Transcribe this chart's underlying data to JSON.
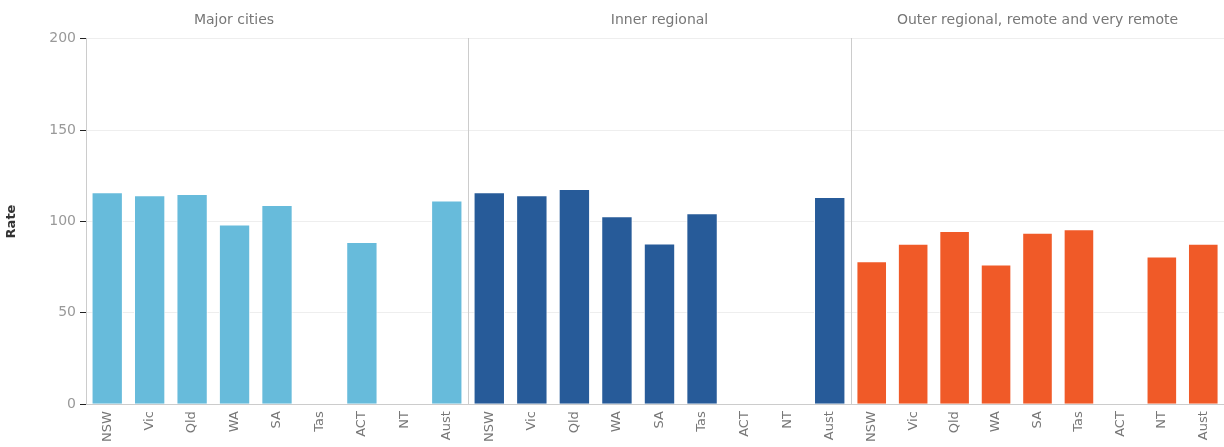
{
  "chart_data": [
    {
      "type": "bar",
      "title": "Major cities",
      "ylabel": "Rate",
      "categories": [
        "NSW",
        "Vic",
        "Qld",
        "WA",
        "SA",
        "Tas",
        "ACT",
        "NT",
        "Aust"
      ],
      "values": [
        116,
        114.3,
        115,
        98.4,
        109,
        null,
        88.8,
        null,
        111.5
      ],
      "color": "#67bbdb",
      "ylim": [
        0,
        200
      ],
      "yticks": [
        0,
        50,
        100,
        150,
        200
      ],
      "grid": "y",
      "legend": false
    },
    {
      "type": "bar",
      "title": "Inner regional",
      "categories": [
        "NSW",
        "Vic",
        "Qld",
        "WA",
        "SA",
        "Tas",
        "ACT",
        "NT",
        "Aust"
      ],
      "values": [
        116,
        114.3,
        117.8,
        102.9,
        87.9,
        104.5,
        null,
        null,
        113.4
      ],
      "color": "#275b99",
      "ylim": [
        0,
        200
      ],
      "yticks": [
        0,
        50,
        100,
        150,
        200
      ],
      "grid": "y",
      "legend": false,
      "tick_labels": "x"
    },
    {
      "type": "bar",
      "title": "Outer regional, remote and very remote",
      "categories": [
        "NSW",
        "Vic",
        "Qld",
        "WA",
        "SA",
        "Tas",
        "ACT",
        "NT",
        "Aust"
      ],
      "values": [
        78.2,
        87.8,
        94.8,
        76.4,
        93.9,
        95.8,
        null,
        80.8,
        87.8
      ],
      "color": "#f05a28",
      "ylim": [
        0,
        200
      ],
      "yticks": [
        0,
        50,
        100,
        150,
        200
      ],
      "grid": "y",
      "legend": false,
      "tick_labels": "x"
    }
  ]
}
